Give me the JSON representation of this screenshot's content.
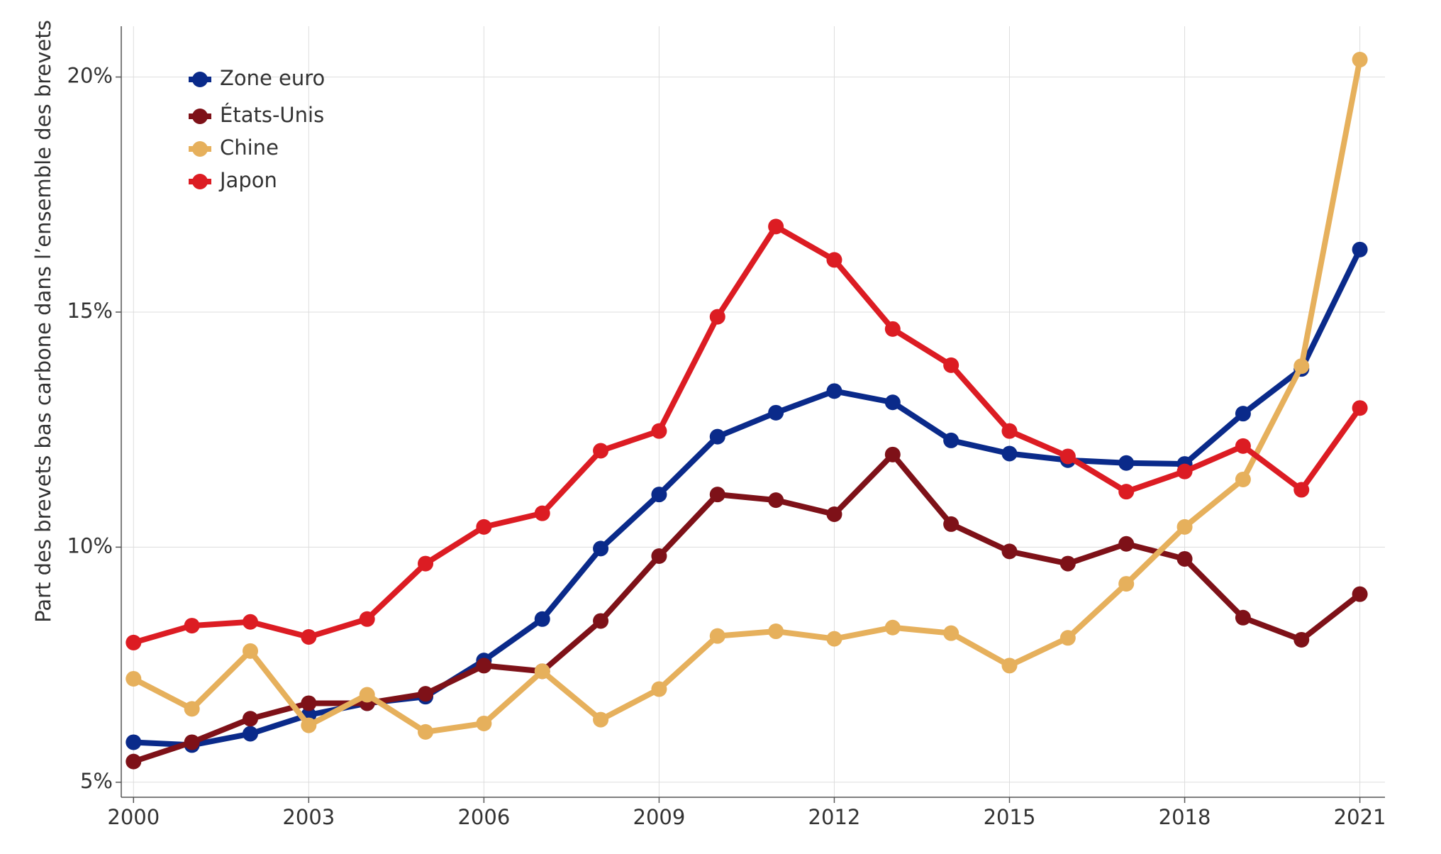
{
  "chart_data": {
    "type": "line",
    "ylabel": "Part des brevets bas carbone dans l’ensemble des brevets",
    "x": [
      2000,
      2001,
      2002,
      2003,
      2004,
      2005,
      2006,
      2007,
      2008,
      2009,
      2010,
      2011,
      2012,
      2013,
      2014,
      2015,
      2016,
      2017,
      2018,
      2019,
      2020,
      2021
    ],
    "series": [
      {
        "name": "Zone euro",
        "color": "#0a2a8a",
        "values": [
          5.85,
          5.79,
          6.03,
          6.43,
          6.68,
          6.82,
          7.59,
          8.47,
          9.97,
          11.12,
          12.35,
          12.86,
          13.32,
          13.08,
          12.27,
          11.99,
          11.85,
          11.79,
          11.77,
          12.84,
          13.79,
          16.33
        ]
      },
      {
        "name": "États-Unis",
        "color": "#7e1118",
        "values": [
          5.44,
          5.85,
          6.35,
          6.68,
          6.68,
          6.88,
          7.48,
          7.36,
          8.43,
          9.81,
          11.12,
          11.0,
          10.7,
          11.97,
          10.49,
          9.91,
          9.65,
          10.07,
          9.75,
          8.5,
          8.03,
          9.0
        ]
      },
      {
        "name": "Chine",
        "color": "#e6b05c",
        "values": [
          7.2,
          6.56,
          7.79,
          6.21,
          6.86,
          6.07,
          6.25,
          7.36,
          6.33,
          6.98,
          8.11,
          8.21,
          8.05,
          8.29,
          8.17,
          7.48,
          8.07,
          9.22,
          10.43,
          11.44,
          13.85,
          20.37
        ]
      },
      {
        "name": "Japon",
        "color": "#dc1c23",
        "values": [
          7.97,
          8.33,
          8.41,
          8.09,
          8.47,
          9.65,
          10.43,
          10.72,
          12.05,
          12.47,
          14.9,
          16.82,
          16.11,
          14.64,
          13.87,
          12.47,
          11.93,
          11.18,
          11.61,
          12.15,
          11.22,
          12.96
        ]
      }
    ],
    "xlim": [
      1999.79,
      2021.43
    ],
    "xticks": [
      2000,
      2003,
      2006,
      2009,
      2012,
      2015,
      2018,
      2021
    ],
    "ylim": [
      4.68,
      21.08
    ],
    "yticks": [
      {
        "value": 5,
        "label": "5%"
      },
      {
        "value": 10,
        "label": "10%"
      },
      {
        "value": 15,
        "label": "15%"
      },
      {
        "value": 20,
        "label": "20%"
      }
    ],
    "grid": true,
    "legend": "top-left"
  }
}
